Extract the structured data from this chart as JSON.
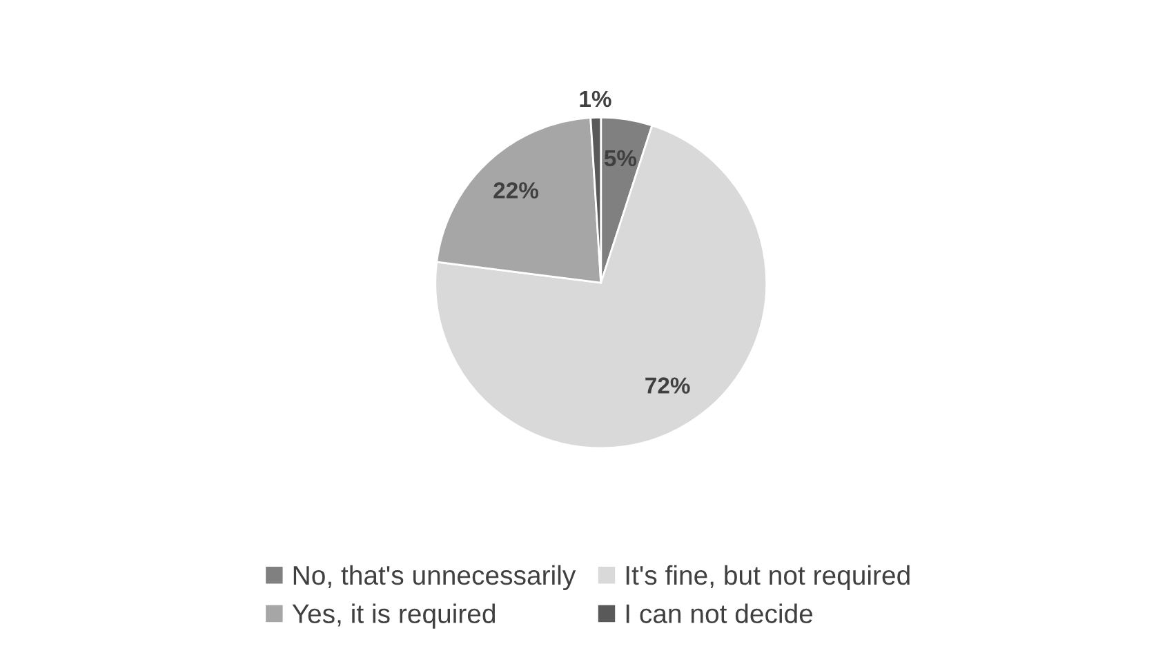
{
  "chart_data": {
    "type": "pie",
    "categories": [
      "No, that's unnecessarily",
      "It's fine, but not required",
      "Yes, it is required",
      "I can not decide"
    ],
    "values": [
      5,
      72,
      22,
      1
    ],
    "colors": [
      "#808080",
      "#d9d9d9",
      "#a6a6a6",
      "#595959"
    ],
    "value_labels": [
      "5%",
      "72%",
      "22%",
      "1%"
    ],
    "legend": "bottom"
  }
}
